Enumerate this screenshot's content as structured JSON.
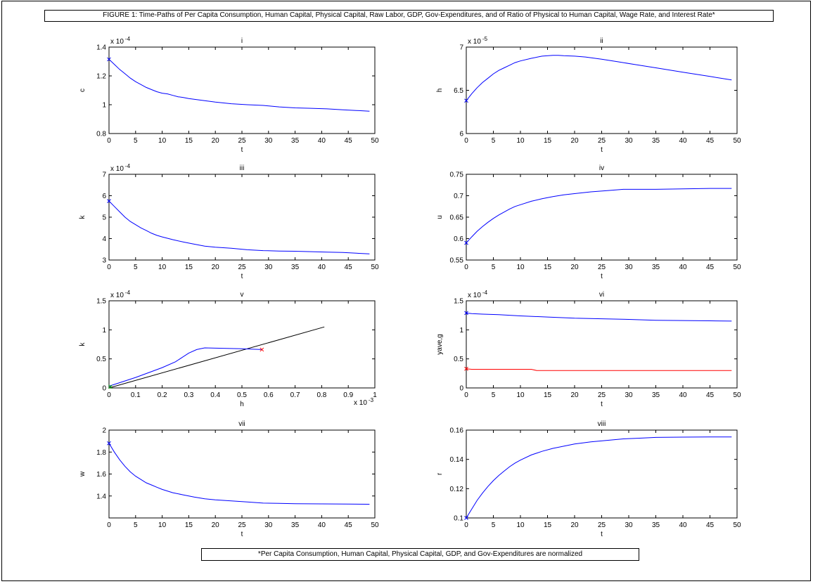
{
  "figure": {
    "title": "FIGURE 1: Time-Paths of Per Capita Consumption, Human Capital, Physical Capital, Raw Labor, GDP, Gov-Expenditures, and of Ratio of Physical to Human Capital, Wage Rate, and Interest Rate*",
    "footnote": "*Per Capita Consumption, Human Capital, Physical Capital, GDP, and Gov-Expenditures are normalized"
  },
  "colors": {
    "blue": "#0000ff",
    "red": "#ff0000",
    "black": "#000000",
    "green": "#00aa00"
  },
  "chart_data": [
    {
      "id": "i",
      "type": "line",
      "title": "i",
      "xlabel": "t",
      "ylabel": "c",
      "exponent": "x 10",
      "exponent_power": "-4",
      "xlim": [
        0,
        50
      ],
      "ylim": [
        0.8,
        1.4
      ],
      "xticks": [
        0,
        5,
        10,
        15,
        20,
        25,
        30,
        35,
        40,
        45,
        50
      ],
      "xtick_labels": [
        "0",
        "5",
        "10",
        "15",
        "20",
        "25",
        "30",
        "35",
        "40",
        "45",
        "50"
      ],
      "yticks": [
        0.8,
        1.0,
        1.2,
        1.4
      ],
      "ytick_labels": [
        "0.8",
        "1",
        "1.2",
        "1.4"
      ],
      "series": [
        {
          "color": "#0000ff",
          "x": [
            0,
            1,
            2,
            3,
            4,
            5,
            6,
            7,
            8,
            9,
            10,
            11,
            12,
            13,
            14,
            15,
            17,
            20,
            23,
            26,
            29,
            32,
            35,
            38,
            41,
            44,
            47,
            49
          ],
          "y": [
            1.315,
            1.28,
            1.245,
            1.215,
            1.185,
            1.16,
            1.14,
            1.12,
            1.105,
            1.09,
            1.08,
            1.075,
            1.065,
            1.055,
            1.05,
            1.043,
            1.033,
            1.018,
            1.007,
            1.0,
            0.995,
            0.985,
            0.978,
            0.975,
            0.971,
            0.965,
            0.959,
            0.955
          ]
        }
      ],
      "start_marker": {
        "x": 0,
        "y": 1.315,
        "color": "#0000ff"
      }
    },
    {
      "id": "ii",
      "type": "line",
      "title": "ii",
      "xlabel": "t",
      "ylabel": "h",
      "exponent": "x 10",
      "exponent_power": "-5",
      "xlim": [
        0,
        50
      ],
      "ylim": [
        6.0,
        7.0
      ],
      "xticks": [
        0,
        5,
        10,
        15,
        20,
        25,
        30,
        35,
        40,
        45,
        50
      ],
      "xtick_labels": [
        "0",
        "5",
        "10",
        "15",
        "20",
        "25",
        "30",
        "35",
        "40",
        "45",
        "50"
      ],
      "yticks": [
        6.0,
        6.5,
        7.0
      ],
      "ytick_labels": [
        "6",
        "6.5",
        "7"
      ],
      "series": [
        {
          "color": "#0000ff",
          "x": [
            0,
            1,
            2,
            3,
            4,
            5,
            6,
            7,
            8,
            9,
            10,
            12,
            14,
            16,
            17,
            18,
            20,
            22,
            25,
            28,
            31,
            35,
            40,
            45,
            49
          ],
          "y": [
            6.38,
            6.46,
            6.53,
            6.59,
            6.64,
            6.69,
            6.73,
            6.76,
            6.79,
            6.82,
            6.84,
            6.87,
            6.895,
            6.905,
            6.905,
            6.9,
            6.895,
            6.885,
            6.86,
            6.83,
            6.8,
            6.76,
            6.71,
            6.66,
            6.62
          ]
        }
      ],
      "start_marker": {
        "x": 0,
        "y": 6.38,
        "color": "#0000ff"
      }
    },
    {
      "id": "iii",
      "type": "line",
      "title": "iii",
      "xlabel": "t",
      "ylabel": "k",
      "exponent": "x 10",
      "exponent_power": "-4",
      "xlim": [
        0,
        50
      ],
      "ylim": [
        3,
        7
      ],
      "xticks": [
        0,
        5,
        10,
        15,
        20,
        25,
        30,
        35,
        40,
        45,
        50
      ],
      "xtick_labels": [
        "0",
        "5",
        "10",
        "15",
        "20",
        "25",
        "30",
        "35",
        "40",
        "45",
        "50"
      ],
      "yticks": [
        3,
        4,
        5,
        6,
        7
      ],
      "ytick_labels": [
        "3",
        "4",
        "5",
        "6",
        "7"
      ],
      "series": [
        {
          "color": "#0000ff",
          "x": [
            0,
            1,
            2,
            3,
            4,
            5,
            6,
            7,
            8,
            9,
            10,
            12,
            14,
            16,
            18,
            20,
            23,
            26,
            29,
            32,
            35,
            38,
            41,
            44,
            47,
            49
          ],
          "y": [
            5.75,
            5.5,
            5.25,
            5.0,
            4.8,
            4.65,
            4.5,
            4.38,
            4.25,
            4.15,
            4.08,
            3.95,
            3.84,
            3.74,
            3.65,
            3.6,
            3.55,
            3.48,
            3.44,
            3.42,
            3.41,
            3.39,
            3.37,
            3.35,
            3.31,
            3.29
          ]
        }
      ],
      "start_marker": {
        "x": 0,
        "y": 5.75,
        "color": "#0000ff"
      }
    },
    {
      "id": "iv",
      "type": "line",
      "title": "iv",
      "xlabel": "t",
      "ylabel": "u",
      "exponent": "",
      "exponent_power": "",
      "xlim": [
        0,
        50
      ],
      "ylim": [
        0.55,
        0.75
      ],
      "xticks": [
        0,
        5,
        10,
        15,
        20,
        25,
        30,
        35,
        40,
        45,
        50
      ],
      "xtick_labels": [
        "0",
        "5",
        "10",
        "15",
        "20",
        "25",
        "30",
        "35",
        "40",
        "45",
        "50"
      ],
      "yticks": [
        0.55,
        0.6,
        0.65,
        0.7,
        0.75
      ],
      "ytick_labels": [
        "0.55",
        "0.6",
        "0.65",
        "0.7",
        "0.75"
      ],
      "series": [
        {
          "color": "#0000ff",
          "x": [
            0,
            1,
            2,
            3,
            4,
            5,
            6,
            7,
            8,
            9,
            10,
            12,
            14,
            16,
            18,
            20,
            23,
            26,
            29,
            32,
            35,
            40,
            45,
            49
          ],
          "y": [
            0.59,
            0.604,
            0.617,
            0.628,
            0.638,
            0.647,
            0.655,
            0.662,
            0.669,
            0.675,
            0.679,
            0.687,
            0.693,
            0.698,
            0.702,
            0.705,
            0.709,
            0.712,
            0.715,
            0.715,
            0.715,
            0.716,
            0.717,
            0.717
          ]
        }
      ],
      "start_marker": {
        "x": 0,
        "y": 0.59,
        "color": "#0000ff"
      }
    },
    {
      "id": "v",
      "type": "line",
      "title": "v",
      "xlabel": "h",
      "ylabel": "k",
      "exponent": "x 10",
      "exponent_power": "-4",
      "x_exponent": "x 10",
      "x_exponent_power": "-3",
      "xlim": [
        0,
        1
      ],
      "ylim": [
        0,
        1.5
      ],
      "xticks": [
        0,
        0.1,
        0.2,
        0.3,
        0.4,
        0.5,
        0.6,
        0.7,
        0.8,
        0.9,
        1.0
      ],
      "xtick_labels": [
        "0",
        "0.1",
        "0.2",
        "0.3",
        "0.4",
        "0.5",
        "0.6",
        "0.7",
        "0.8",
        "0.9",
        "1"
      ],
      "yticks": [
        0,
        0.5,
        1.0,
        1.5
      ],
      "ytick_labels": [
        "0",
        "0.5",
        "1",
        "1.5"
      ],
      "series": [
        {
          "color": "#000000",
          "x": [
            0,
            0.81
          ],
          "y": [
            0,
            1.05
          ]
        },
        {
          "color": "#0000ff",
          "x": [
            0.0,
            0.1,
            0.2,
            0.25,
            0.3,
            0.33,
            0.36,
            0.4,
            0.5,
            0.575
          ],
          "y": [
            0.03,
            0.18,
            0.35,
            0.45,
            0.6,
            0.66,
            0.69,
            0.685,
            0.675,
            0.66
          ]
        }
      ],
      "markers": [
        {
          "x": 0.575,
          "y": 0.66,
          "color": "#ff0000"
        },
        {
          "x": 0.005,
          "y": 0.02,
          "color": "#00aa00"
        }
      ]
    },
    {
      "id": "vi",
      "type": "line",
      "title": "vi",
      "xlabel": "t",
      "ylabel": "yave,g",
      "exponent": "x 10",
      "exponent_power": "-4",
      "xlim": [
        0,
        50
      ],
      "ylim": [
        0,
        1.5
      ],
      "xticks": [
        0,
        5,
        10,
        15,
        20,
        25,
        30,
        35,
        40,
        45,
        50
      ],
      "xtick_labels": [
        "0",
        "5",
        "10",
        "15",
        "20",
        "25",
        "30",
        "35",
        "40",
        "45",
        "50"
      ],
      "yticks": [
        0,
        0.5,
        1.0,
        1.5
      ],
      "ytick_labels": [
        "0",
        "0.5",
        "1",
        "1.5"
      ],
      "series": [
        {
          "color": "#0000ff",
          "x": [
            0,
            1,
            3,
            6,
            10,
            15,
            20,
            25,
            30,
            35,
            40,
            45,
            49
          ],
          "y": [
            1.29,
            1.28,
            1.27,
            1.26,
            1.24,
            1.22,
            1.2,
            1.19,
            1.18,
            1.165,
            1.16,
            1.155,
            1.15
          ]
        },
        {
          "color": "#ff0000",
          "x": [
            0,
            1,
            2,
            5,
            10,
            12,
            13,
            20,
            25,
            30,
            35,
            40,
            45,
            49
          ],
          "y": [
            0.33,
            0.32,
            0.32,
            0.32,
            0.32,
            0.32,
            0.3,
            0.3,
            0.3,
            0.3,
            0.3,
            0.3,
            0.3,
            0.3
          ]
        }
      ],
      "markers": [
        {
          "x": 0,
          "y": 1.29,
          "color": "#0000ff"
        },
        {
          "x": 0,
          "y": 0.33,
          "color": "#ff0000"
        }
      ]
    },
    {
      "id": "vii",
      "type": "line",
      "title": "vii",
      "xlabel": "t",
      "ylabel": "w",
      "exponent": "",
      "exponent_power": "",
      "xlim": [
        0,
        50
      ],
      "ylim": [
        1.2,
        2.0
      ],
      "xticks": [
        0,
        5,
        10,
        15,
        20,
        25,
        30,
        35,
        40,
        45,
        50
      ],
      "xtick_labels": [
        "0",
        "5",
        "10",
        "15",
        "20",
        "25",
        "30",
        "35",
        "40",
        "45",
        "50"
      ],
      "yticks": [
        1.4,
        1.6,
        1.8,
        2.0
      ],
      "ytick_labels": [
        "1.4",
        "1.6",
        "1.8",
        "2"
      ],
      "series": [
        {
          "color": "#0000ff",
          "x": [
            0,
            1,
            2,
            3,
            4,
            5,
            6,
            7,
            8,
            9,
            10,
            12,
            14,
            16,
            18,
            20,
            23,
            26,
            29,
            32,
            35,
            40,
            45,
            49
          ],
          "y": [
            1.88,
            1.8,
            1.73,
            1.67,
            1.62,
            1.58,
            1.55,
            1.52,
            1.5,
            1.48,
            1.46,
            1.43,
            1.41,
            1.39,
            1.375,
            1.365,
            1.355,
            1.345,
            1.335,
            1.333,
            1.33,
            1.328,
            1.326,
            1.325
          ]
        }
      ],
      "start_marker": {
        "x": 0,
        "y": 1.88,
        "color": "#0000ff"
      }
    },
    {
      "id": "viii",
      "type": "line",
      "title": "viii",
      "xlabel": "t",
      "ylabel": "r",
      "exponent": "",
      "exponent_power": "",
      "xlim": [
        0,
        50
      ],
      "ylim": [
        0.1,
        0.16
      ],
      "xticks": [
        0,
        5,
        10,
        15,
        20,
        25,
        30,
        35,
        40,
        45,
        50
      ],
      "xtick_labels": [
        "0",
        "5",
        "10",
        "15",
        "20",
        "25",
        "30",
        "35",
        "40",
        "45",
        "50"
      ],
      "yticks": [
        0.1,
        0.12,
        0.14,
        0.16
      ],
      "ytick_labels": [
        "0.1",
        "0.12",
        "0.14",
        "0.16"
      ],
      "series": [
        {
          "color": "#0000ff",
          "x": [
            0,
            1,
            2,
            3,
            4,
            5,
            6,
            7,
            8,
            9,
            10,
            12,
            14,
            16,
            18,
            20,
            23,
            26,
            29,
            32,
            35,
            40,
            45,
            49
          ],
          "y": [
            0.1,
            0.106,
            0.112,
            0.117,
            0.1215,
            0.1255,
            0.129,
            0.132,
            0.135,
            0.1375,
            0.1395,
            0.143,
            0.1455,
            0.1475,
            0.149,
            0.1505,
            0.152,
            0.153,
            0.154,
            0.1545,
            0.155,
            0.1552,
            0.1553,
            0.1553
          ]
        }
      ],
      "start_marker": {
        "x": 0,
        "y": 0.1,
        "color": "#0000ff"
      }
    }
  ]
}
